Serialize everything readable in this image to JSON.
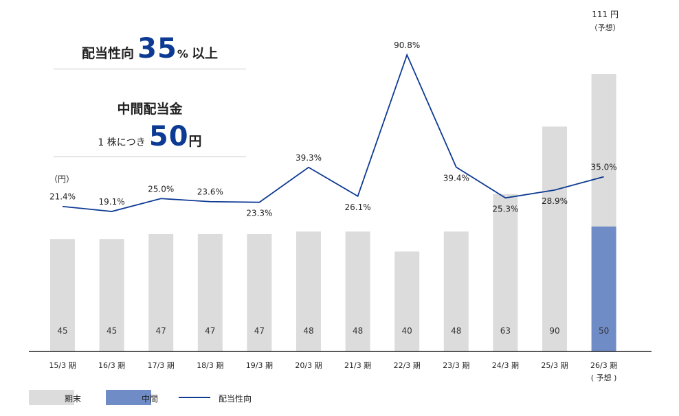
{
  "info": {
    "payout_label": "配当性向",
    "payout_value": "35",
    "payout_percent": "%",
    "payout_suffix": "以上",
    "interim_title": "中間配当金",
    "interim_per_share": "1 株につき",
    "interim_value": "50",
    "interim_unit": "円"
  },
  "unit_label": "（円）",
  "legend": {
    "year_end": "期末",
    "interim": "中間",
    "payout_ratio": "配当性向"
  },
  "colors": {
    "year_end_bar": "#dcdcdc",
    "interim_bar": "#6f8cc6",
    "payout_line": "#0d3a93"
  },
  "chart_data": {
    "type": "bar",
    "categories": [
      "15/3 期",
      "16/3 期",
      "17/3 期",
      "18/3 期",
      "19/3 期",
      "20/3 期",
      "21/3 期",
      "22/3 期",
      "23/3 期",
      "24/3 期",
      "25/3 期",
      "26/3 期"
    ],
    "category_sublabels": [
      "",
      "",
      "",
      "",
      "",
      "",
      "",
      "",
      "",
      "",
      "",
      "( 予想 )"
    ],
    "series": [
      {
        "name": "期末",
        "type": "bar",
        "stack": "dividend",
        "values": [
          45,
          45,
          47,
          47,
          47,
          48,
          48,
          40,
          48,
          63,
          90,
          61
        ]
      },
      {
        "name": "中間",
        "type": "bar",
        "stack": "dividend",
        "values": [
          null,
          null,
          null,
          null,
          null,
          null,
          null,
          null,
          null,
          null,
          null,
          50
        ]
      },
      {
        "name": "配当性向",
        "type": "line",
        "axis": "right",
        "values": [
          21.4,
          19.1,
          25.0,
          23.6,
          23.3,
          39.3,
          26.1,
          90.8,
          39.4,
          25.3,
          28.9,
          35.0
        ]
      }
    ],
    "bar_value_labels": [
      "45",
      "45",
      "47",
      "47",
      "47",
      "48",
      "48",
      "40",
      "48",
      "63",
      "90",
      "50"
    ],
    "line_value_labels": [
      "21.4%",
      "19.1%",
      "25.0%",
      "23.6%",
      "23.3%",
      "39.3%",
      "26.1%",
      "90.8%",
      "39.4%",
      "25.3%",
      "28.9%",
      "35.0%"
    ],
    "total_label": "111 円",
    "total_sublabel": "（予想）",
    "ylim": [
      0,
      125
    ],
    "y2lim": [
      -45,
      98
    ],
    "ylabel": "（円）",
    "grid": false,
    "legend_position": "bottom-left"
  }
}
